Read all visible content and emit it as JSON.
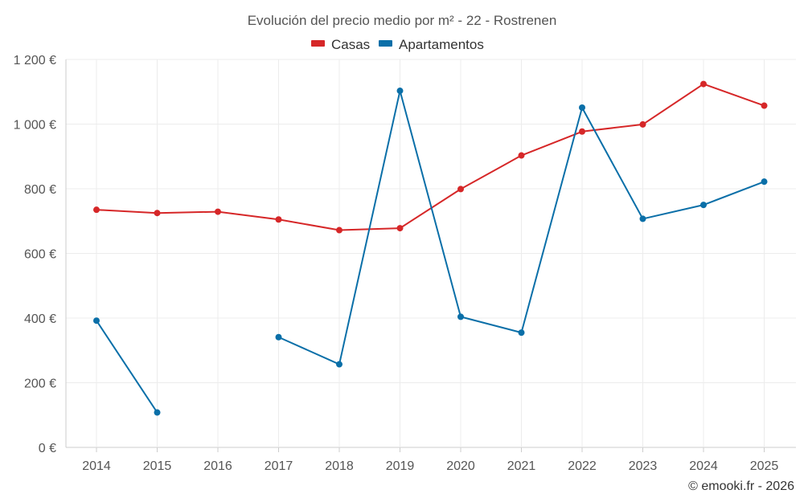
{
  "chart_data": {
    "type": "line",
    "title": "Evolución del precio medio por m² - 22 - Rostrenen",
    "xlabel": "",
    "ylabel": "",
    "categories": [
      "2014",
      "2015",
      "2016",
      "2017",
      "2018",
      "2019",
      "2020",
      "2021",
      "2022",
      "2023",
      "2024",
      "2025"
    ],
    "ylim": [
      0,
      1200
    ],
    "yticks": [
      0,
      200,
      400,
      600,
      800,
      1000,
      1200
    ],
    "ytick_labels": [
      "0 €",
      "200 €",
      "400 €",
      "600 €",
      "800 €",
      "1 000 €",
      "1 200 €"
    ],
    "grid": true,
    "legend_position": "top-center",
    "series": [
      {
        "name": "Casas",
        "color": "#d62728",
        "values": [
          735,
          725,
          729,
          705,
          672,
          678,
          799,
          903,
          977,
          999,
          1124,
          1057
        ]
      },
      {
        "name": "Apartamentos",
        "color": "#0a6fa8",
        "values": [
          392,
          108,
          null,
          341,
          257,
          1103,
          404,
          355,
          1051,
          707,
          750,
          822
        ]
      }
    ]
  },
  "footer": {
    "credit": "© emooki.fr - 2026"
  }
}
